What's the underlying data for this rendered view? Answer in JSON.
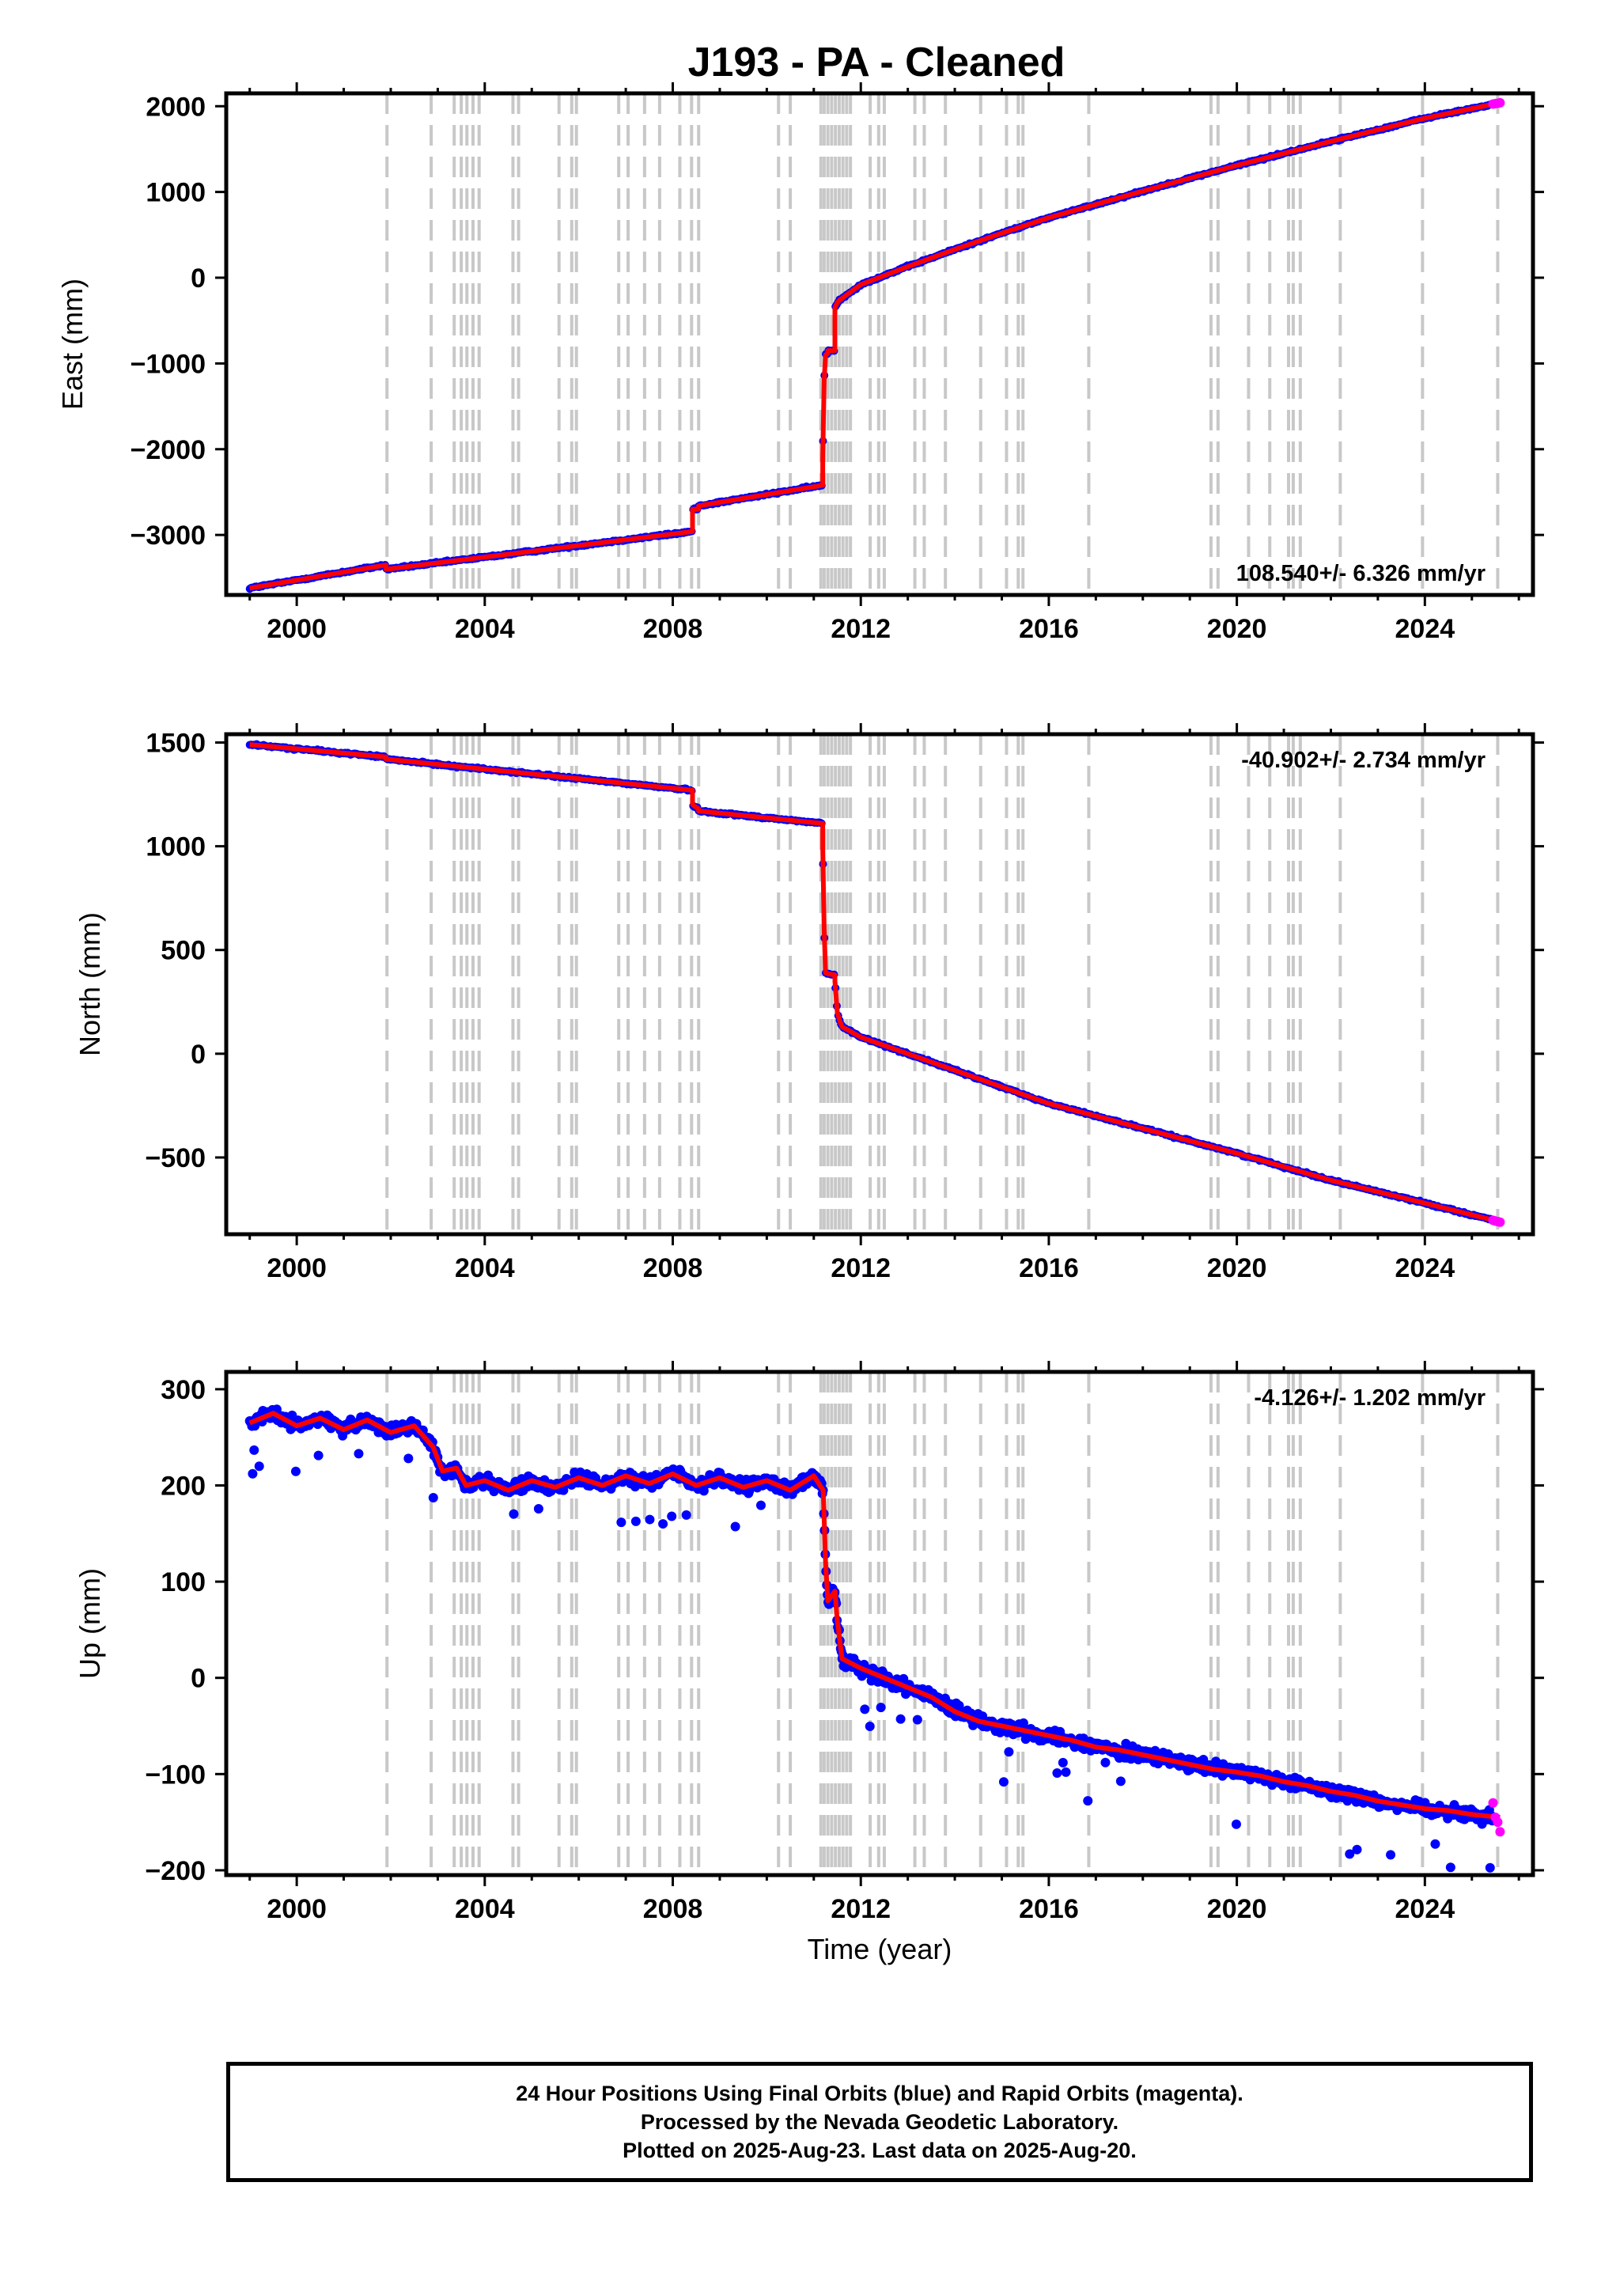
{
  "title": "J193  - PA - Cleaned",
  "colors": {
    "final_orbits": "#0000ff",
    "rapid_orbits": "#ff00ff",
    "model": "#ff0000",
    "event_lines": "#c8c8c8"
  },
  "event_line_years": [
    2001.92,
    2002.86,
    2003.35,
    2003.5,
    2003.62,
    2003.75,
    2003.88,
    2004.6,
    2004.72,
    2005.58,
    2005.85,
    2005.95,
    2006.85,
    2007.05,
    2007.4,
    2007.72,
    2008.15,
    2008.4,
    2008.55,
    2010.25,
    2010.5,
    2011.15,
    2011.22,
    2011.3,
    2011.38,
    2011.46,
    2011.54,
    2011.62,
    2011.7,
    2011.78,
    2012.2,
    2012.38,
    2012.5,
    2013.15,
    2013.35,
    2013.8,
    2014.55,
    2015.1,
    2015.35,
    2015.45,
    2016.85,
    2019.45,
    2019.6,
    2020.25,
    2020.7,
    2021.1,
    2021.2,
    2021.35,
    2022.2,
    2023.95,
    2025.55
  ],
  "footer": {
    "line1": "24 Hour Positions Using Final Orbits (blue) and Rapid Orbits (magenta).",
    "line2": "Processed by the Nevada Geodetic Laboratory.",
    "line3": "Plotted on 2025-Aug-23. Last data on 2025-Aug-20."
  },
  "chart_data": [
    {
      "type": "scatter",
      "ylabel": "East (mm)",
      "xlabel": "",
      "xlim": [
        1998.5,
        2026.3
      ],
      "ylim": [
        -3700,
        2150
      ],
      "xticks": [
        2000,
        2004,
        2008,
        2012,
        2016,
        2020,
        2024
      ],
      "yticks": [
        -3000,
        -2000,
        -1000,
        0,
        1000,
        2000
      ],
      "tick_labels_y": [
        "−3000",
        "−2000",
        "−1000",
        "0",
        "1000",
        "2000"
      ],
      "rate_label": "108.540+/- 6.326 mm/yr",
      "rate_position": "bottom-right",
      "grid": false,
      "series": [
        {
          "role": "model",
          "x": [
            1999.0,
            2001.9,
            2001.9,
            2008.42,
            2008.42,
            2008.55,
            2008.55,
            2011.19,
            2011.19,
            2011.22,
            2011.25,
            2011.3,
            2011.3,
            2011.45,
            2011.45,
            2011.5,
            2011.55,
            2011.6,
            2012.0,
            2013.0,
            2014.0,
            2015.0,
            2016.0,
            2018.0,
            2020.0,
            2022.0,
            2024.0,
            2025.6
          ],
          "y": [
            -3620,
            -3350,
            -3400,
            -2960,
            -2700,
            -2700,
            -2660,
            -2420,
            -2100,
            -1200,
            -900,
            -880,
            -850,
            -850,
            -350,
            -290,
            -260,
            -240,
            -80,
            130,
            330,
            520,
            700,
            1010,
            1310,
            1590,
            1860,
            2040
          ]
        },
        {
          "role": "rapid_orbits",
          "x": [
            2025.45,
            2025.5,
            2025.55,
            2025.6
          ],
          "y": [
            2025,
            2030,
            2035,
            2040
          ]
        }
      ]
    },
    {
      "type": "scatter",
      "ylabel": "North (mm)",
      "xlabel": "",
      "xlim": [
        1998.5,
        2026.3
      ],
      "ylim": [
        -870,
        1540
      ],
      "xticks": [
        2000,
        2004,
        2008,
        2012,
        2016,
        2020,
        2024
      ],
      "yticks": [
        -500,
        0,
        500,
        1000,
        1500
      ],
      "tick_labels_y": [
        "−500",
        "0",
        "500",
        "1000",
        "1500"
      ],
      "rate_label": "-40.902+/- 2.734 mm/yr",
      "rate_position": "top-right",
      "grid": false,
      "series": [
        {
          "role": "model",
          "x": [
            1999.0,
            2001.9,
            2001.9,
            2008.42,
            2008.42,
            2008.55,
            2008.55,
            2011.19,
            2011.19,
            2011.22,
            2011.25,
            2011.3,
            2011.3,
            2011.45,
            2011.45,
            2011.5,
            2011.55,
            2011.6,
            2012.0,
            2013.0,
            2014.0,
            2015.0,
            2016.0,
            2018.0,
            2020.0,
            2022.0,
            2024.0,
            2025.6
          ],
          "y": [
            1490,
            1430,
            1420,
            1270,
            1200,
            1180,
            1170,
            1110,
            1000,
            600,
            390,
            385,
            385,
            380,
            350,
            200,
            160,
            130,
            80,
            0,
            -80,
            -160,
            -240,
            -360,
            -480,
            -610,
            -720,
            -810
          ]
        },
        {
          "role": "rapid_orbits",
          "x": [
            2025.45,
            2025.5,
            2025.55,
            2025.6
          ],
          "y": [
            -803,
            -806,
            -809,
            -812
          ]
        }
      ]
    },
    {
      "type": "scatter",
      "ylabel": "Up (mm)",
      "xlabel": "Time (year)",
      "xlim": [
        1998.5,
        2026.3
      ],
      "ylim": [
        -205,
        318
      ],
      "xticks": [
        2000,
        2004,
        2008,
        2012,
        2016,
        2020,
        2024
      ],
      "yticks": [
        -200,
        -100,
        0,
        100,
        200,
        300
      ],
      "tick_labels_y": [
        "−200",
        "−100",
        "0",
        "100",
        "200",
        "300"
      ],
      "rate_label": "-4.126+/- 1.202 mm/yr",
      "rate_position": "top-right",
      "grid": false,
      "series": [
        {
          "role": "model",
          "x": [
            1999.0,
            1999.5,
            2000.0,
            2000.5,
            2001.0,
            2001.5,
            2002.0,
            2002.5,
            2002.9,
            2003.1,
            2003.4,
            2003.6,
            2004.0,
            2004.5,
            2005.0,
            2005.5,
            2006.0,
            2006.5,
            2007.0,
            2007.5,
            2008.0,
            2008.5,
            2009.0,
            2009.5,
            2010.0,
            2010.5,
            2011.0,
            2011.2,
            2011.25,
            2011.3,
            2011.45,
            2011.5,
            2011.6,
            2012.0,
            2012.5,
            2013.0,
            2013.5,
            2014.0,
            2014.5,
            2015.0,
            2015.5,
            2016.0,
            2016.5,
            2017.0,
            2017.5,
            2018.0,
            2018.5,
            2019.0,
            2019.5,
            2020.0,
            2020.5,
            2021.0,
            2021.5,
            2022.0,
            2022.5,
            2023.0,
            2023.5,
            2024.0,
            2024.5,
            2025.0,
            2025.6
          ],
          "y": [
            265,
            275,
            262,
            270,
            258,
            268,
            255,
            262,
            240,
            215,
            218,
            200,
            205,
            195,
            205,
            198,
            208,
            200,
            210,
            202,
            212,
            200,
            208,
            198,
            205,
            195,
            210,
            195,
            120,
            80,
            90,
            60,
            20,
            10,
            0,
            -10,
            -20,
            -35,
            -45,
            -50,
            -55,
            -60,
            -65,
            -72,
            -75,
            -80,
            -85,
            -90,
            -95,
            -98,
            -102,
            -108,
            -112,
            -118,
            -122,
            -128,
            -132,
            -136,
            -138,
            -142,
            -145
          ]
        },
        {
          "role": "rapid_orbits",
          "x": [
            2025.45,
            2025.5,
            2025.55,
            2025.6
          ],
          "y": [
            -130,
            -145,
            -150,
            -160
          ]
        }
      ]
    }
  ]
}
